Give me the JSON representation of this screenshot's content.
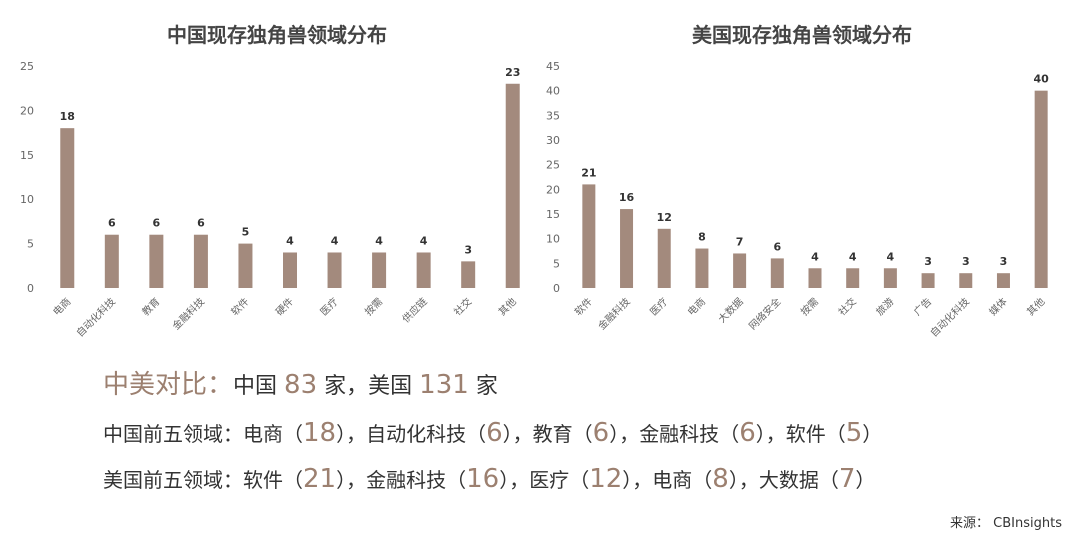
{
  "chart_data": [
    {
      "type": "bar",
      "title": "中国现存独角兽领域分布",
      "categories": [
        "电商",
        "自动化科技",
        "教育",
        "金融科技",
        "软件",
        "硬件",
        "医疗",
        "按需",
        "供应链",
        "社交",
        "其他"
      ],
      "values": [
        18,
        6,
        6,
        6,
        5,
        4,
        4,
        4,
        4,
        3,
        23
      ],
      "ylim": [
        0,
        25
      ],
      "yticks": [
        0,
        5,
        10,
        15,
        20,
        25
      ],
      "grid": false,
      "color": "#a38a7d"
    },
    {
      "type": "bar",
      "title": "美国现存独角兽领域分布",
      "categories": [
        "软件",
        "金融科技",
        "医疗",
        "电商",
        "大数据",
        "网络安全",
        "按需",
        "社交",
        "旅游",
        "广告",
        "自动化科技",
        "媒体",
        "其他"
      ],
      "values": [
        21,
        16,
        12,
        8,
        7,
        6,
        4,
        4,
        4,
        3,
        3,
        3,
        40
      ],
      "ylim": [
        0,
        45
      ],
      "yticks": [
        0,
        5,
        10,
        15,
        20,
        25,
        30,
        35,
        40,
        45
      ],
      "grid": false,
      "color": "#a38a7d"
    }
  ],
  "summary": {
    "compare_head": "中美对比：",
    "cn_label": "中国",
    "cn_count": "83",
    "unit": "家",
    "sep": "，",
    "us_label": "美国",
    "us_count": "131",
    "cn_top5_head": "中国前五领域：",
    "cn_top5": [
      {
        "name": "电商",
        "value": "18"
      },
      {
        "name": "自动化科技",
        "value": "6"
      },
      {
        "name": "教育",
        "value": "6"
      },
      {
        "name": "金融科技",
        "value": "6"
      },
      {
        "name": "软件",
        "value": "5"
      }
    ],
    "us_top5_head": "美国前五领域：",
    "us_top5": [
      {
        "name": "软件",
        "value": "21"
      },
      {
        "name": "金融科技",
        "value": "16"
      },
      {
        "name": "医疗",
        "value": "12"
      },
      {
        "name": "电商",
        "value": "8"
      },
      {
        "name": "大数据",
        "value": "7"
      }
    ],
    "open_paren": "（",
    "close_paren": "）"
  },
  "source": "来源： CBInsights"
}
